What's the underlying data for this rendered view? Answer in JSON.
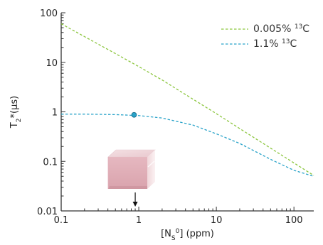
{
  "chart_data": {
    "type": "line",
    "x_scale": "log",
    "y_scale": "log",
    "xlim": [
      0.1,
      180
    ],
    "ylim": [
      0.01,
      100
    ],
    "x_ticks": [
      "0.1",
      "1",
      "10",
      "100"
    ],
    "y_ticks": [
      "0.01",
      "0.1",
      "1",
      "10",
      "100"
    ],
    "xlabel": {
      "pre": "[N",
      "sub": "S",
      "sup": "0",
      "post": "] (ppm)"
    },
    "ylabel": {
      "pre": "T",
      "sub": "2",
      "post": "*(μs)"
    },
    "legend_position": "top-right",
    "series": [
      {
        "name": {
          "pre": "0.005% ",
          "sup": "13",
          "post": "C"
        },
        "color": "#8cc63f",
        "style": "dashed",
        "x": [
          0.1,
          0.2,
          0.5,
          1,
          2,
          5,
          10,
          20,
          50,
          100,
          180
        ],
        "y": [
          60,
          33,
          15,
          8.2,
          4.4,
          1.8,
          0.92,
          0.46,
          0.185,
          0.093,
          0.052
        ]
      },
      {
        "name": {
          "pre": "1.1% ",
          "sup": "13",
          "post": "C"
        },
        "color": "#29a3c9",
        "style": "dashed",
        "x": [
          0.1,
          0.2,
          0.5,
          1,
          2,
          5,
          10,
          20,
          50,
          100,
          180
        ],
        "y": [
          0.9,
          0.9,
          0.88,
          0.84,
          0.75,
          0.54,
          0.36,
          0.23,
          0.11,
          0.066,
          0.05
        ]
      }
    ],
    "marker": {
      "x": 0.87,
      "y": 0.87,
      "color": "#29a3c9"
    },
    "arrow_annotation": {
      "x": 0.9
    }
  }
}
